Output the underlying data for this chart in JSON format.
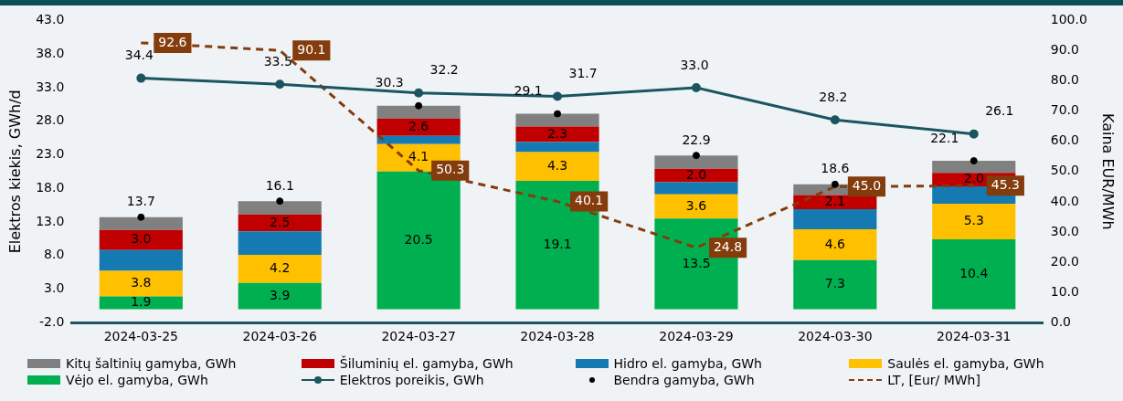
{
  "chart_data": {
    "type": "bar",
    "stacked": true,
    "categories": [
      "2024-03-25",
      "2024-03-26",
      "2024-03-27",
      "2024-03-28",
      "2024-03-29",
      "2024-03-30",
      "2024-03-31"
    ],
    "series": [
      {
        "name": "Vėjo el. gamyba, GWh",
        "color": "#00b050",
        "values": [
          1.9,
          3.9,
          20.5,
          19.1,
          13.5,
          7.3,
          10.4
        ],
        "value_labels": [
          "1.9",
          "3.9",
          "20.5",
          "19.1",
          "13.5",
          "7.3",
          "10.4"
        ]
      },
      {
        "name": "Saulės el. gamyba, GWh",
        "color": "#ffc000",
        "values": [
          3.8,
          4.2,
          4.1,
          4.3,
          3.6,
          4.6,
          5.3
        ],
        "value_labels": [
          "3.8",
          "4.2",
          "4.1",
          "4.3",
          "3.6",
          "4.6",
          "5.3"
        ]
      },
      {
        "name": "Hidro el. gamyba, GWh",
        "color": "#157ab2",
        "values": [
          3.1,
          3.5,
          1.2,
          1.5,
          1.8,
          3.0,
          2.6
        ]
      },
      {
        "name": "Šiluminių el. gamyba, GWh",
        "color": "#c00000",
        "values": [
          3.0,
          2.5,
          2.6,
          2.3,
          2.0,
          2.1,
          2.0
        ],
        "value_labels": [
          "3.0",
          "2.5",
          "2.6",
          "2.3",
          "2.0",
          "2.1",
          "2.0"
        ]
      },
      {
        "name": "Kitų šaltinių gamyba, GWh",
        "color": "#808080",
        "values": [
          1.9,
          2.0,
          1.9,
          1.9,
          2.0,
          1.6,
          1.8
        ]
      },
      {
        "name": "Elektros poreikis, GWh",
        "type": "line",
        "color": "#1a5560",
        "marker": "circle",
        "line_style": "solid",
        "values": [
          34.4,
          33.5,
          32.2,
          31.7,
          33.0,
          28.2,
          26.1
        ],
        "value_labels": [
          "34.4",
          "33.5",
          "32.2",
          "31.7",
          "33.0",
          "28.2",
          "26.1"
        ]
      },
      {
        "name": "Bendra gamyba, GWh",
        "type": "scatter",
        "color": "#000000",
        "values": [
          13.7,
          16.1,
          30.3,
          29.1,
          22.9,
          18.6,
          22.1
        ],
        "value_labels": [
          "13.7",
          "16.1",
          "30.3",
          "29.1",
          "22.9",
          "18.6",
          "22.1"
        ]
      },
      {
        "name": "LT, [Eur/ MWh]",
        "type": "line",
        "axis": "y2",
        "color": "#843c0c",
        "marker": "none",
        "line_style": "dashed",
        "values": [
          92.6,
          90.1,
          50.3,
          40.1,
          24.8,
          45.0,
          45.3
        ],
        "value_labels": [
          "92.6",
          "90.1",
          "50.3",
          "40.1",
          "24.8",
          "45.0",
          "45.3"
        ]
      }
    ],
    "ylabel": "Elektros kiekis, GWh/d",
    "y2label": "Kaina EUR/MWh",
    "ylim": [
      -2,
      43
    ],
    "yticks": [
      {
        "value": -2,
        "label": "-2.0"
      },
      {
        "value": 3,
        "label": "3.0"
      },
      {
        "value": 8,
        "label": "8.0"
      },
      {
        "value": 13,
        "label": "13.0"
      },
      {
        "value": 18,
        "label": "18.0"
      },
      {
        "value": 23,
        "label": "23.0"
      },
      {
        "value": 28,
        "label": "28.0"
      },
      {
        "value": 33,
        "label": "33.0"
      },
      {
        "value": 38,
        "label": "38.0"
      },
      {
        "value": 43,
        "label": "43.0"
      }
    ],
    "y2lim": [
      0,
      100
    ],
    "y2ticks": [
      {
        "value": 0,
        "label": "0.0"
      },
      {
        "value": 10,
        "label": "10.0"
      },
      {
        "value": 20,
        "label": "20.0"
      },
      {
        "value": 30,
        "label": "30.0"
      },
      {
        "value": 40,
        "label": "40.0"
      },
      {
        "value": 50,
        "label": "50.0"
      },
      {
        "value": 60,
        "label": "60.0"
      },
      {
        "value": 70,
        "label": "70.0"
      },
      {
        "value": 80,
        "label": "80.0"
      },
      {
        "value": 90,
        "label": "90.0"
      },
      {
        "value": 100,
        "label": "100.0"
      }
    ],
    "grid": false,
    "legend": "bottom"
  }
}
